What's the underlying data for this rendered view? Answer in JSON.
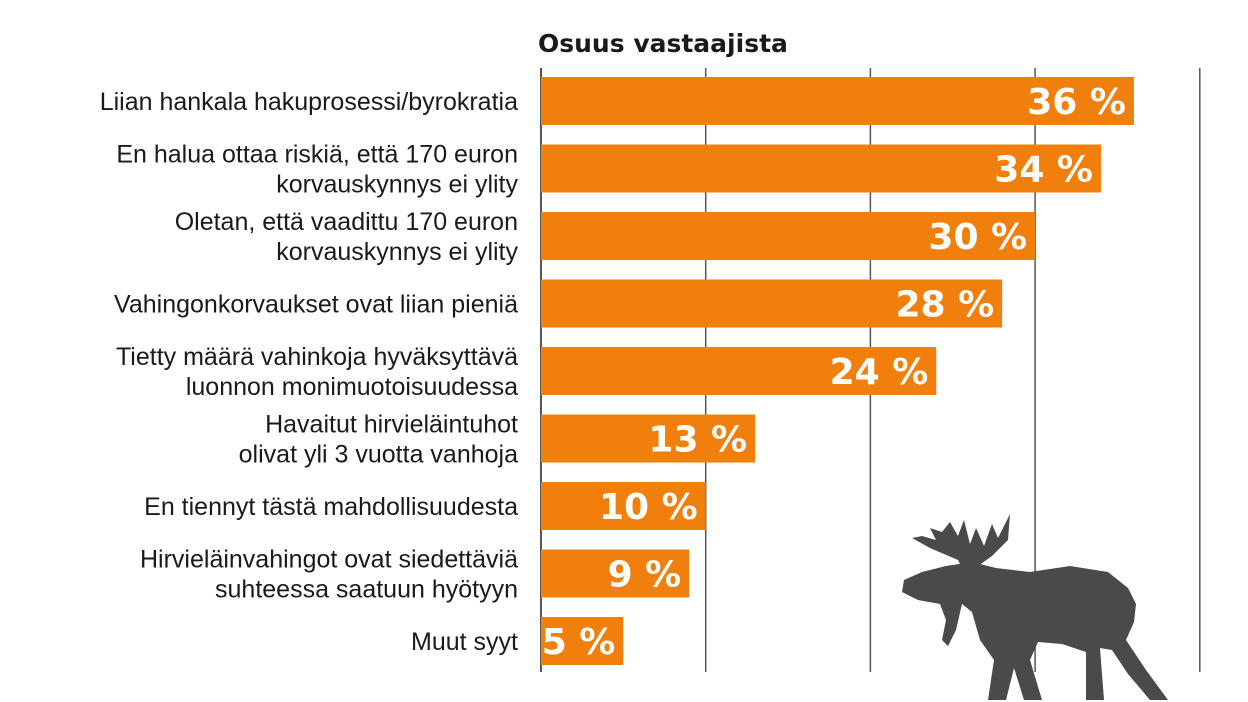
{
  "chart_data": {
    "type": "bar",
    "orientation": "horizontal",
    "title": "Osuus vastaajista",
    "unit": "%",
    "xlim": [
      0,
      40
    ],
    "grid": true,
    "categories": [
      [
        "Liian hankala hakuprosessi/byrokratia"
      ],
      [
        "En halua ottaa riskiä, että 170 euron",
        "korvauskynnys ei ylity"
      ],
      [
        "Oletan, että vaadittu 170 euron",
        "korvauskynnys ei ylity"
      ],
      [
        "Vahingonkorvaukset ovat liian pieniä"
      ],
      [
        "Tietty määrä vahinkoja hyväksyttävä",
        "luonnon monimuotoisuudessa"
      ],
      [
        "Havaitut hirvieläintuhot",
        "olivat yli 3 vuotta vanhoja"
      ],
      [
        "En tiennyt tästä mahdollisuudesta"
      ],
      [
        "Hirvieläinvahingot ovat siedettäviä",
        "suhteessa saatuun hyötyyn"
      ],
      [
        "Muut syyt"
      ]
    ],
    "values": [
      36,
      34,
      30,
      28,
      24,
      13,
      10,
      9,
      5
    ],
    "value_labels": [
      "36 %",
      "34 %",
      "30 %",
      "28 %",
      "24 %",
      "13 %",
      "10 %",
      "9 %",
      "5 %"
    ],
    "bar_color": "#f07f0c",
    "grid_color": "#555555",
    "decoration": "moose-silhouette",
    "decoration_color": "#4a4a4a"
  }
}
